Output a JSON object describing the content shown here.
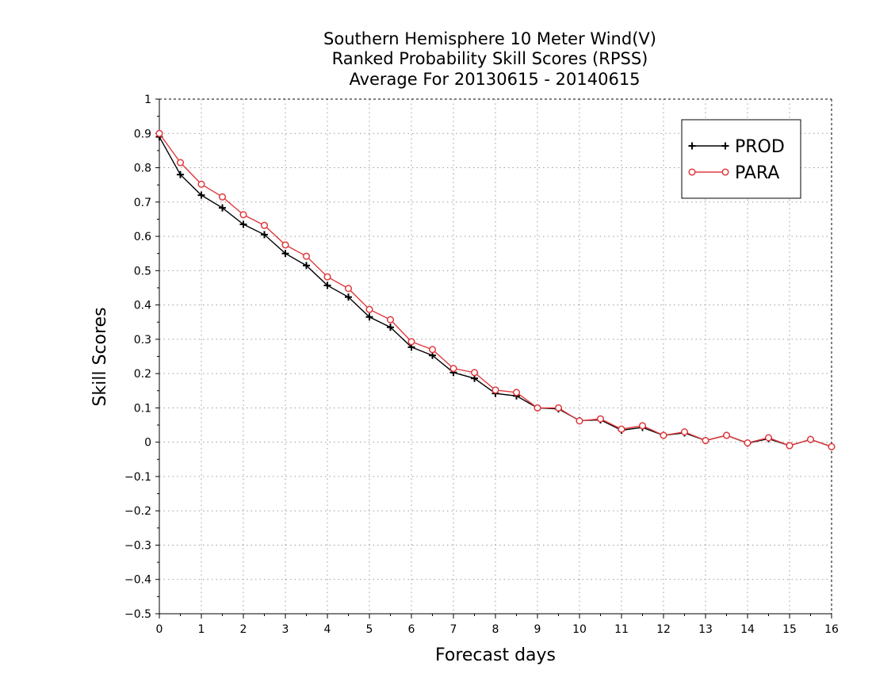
{
  "chart_data": {
    "type": "line",
    "title": [
      "Southern Hemisphere 10 Meter Wind(V)",
      "Ranked Probability Skill Scores (RPSS)",
      "Average For 20130615 - 20140615"
    ],
    "xlabel": "Forecast days",
    "ylabel": "Skill Scores",
    "xlim": [
      0,
      16
    ],
    "ylim": [
      -0.5,
      1
    ],
    "xticks": [
      0,
      1,
      2,
      3,
      4,
      5,
      6,
      7,
      8,
      9,
      10,
      11,
      12,
      13,
      14,
      15,
      16
    ],
    "yticks": [
      -0.5,
      -0.4,
      -0.3,
      -0.2,
      -0.1,
      0,
      0.1,
      0.2,
      0.3,
      0.4,
      0.5,
      0.6,
      0.7,
      0.8,
      0.9,
      1
    ],
    "ytick_labels": [
      "−0.5",
      "−0.4",
      "−0.3",
      "−0.2",
      "−0.1",
      "0",
      "0.1",
      "0.2",
      "0.3",
      "0.4",
      "0.5",
      "0.6",
      "0.7",
      "0.8",
      "0.9",
      "1"
    ],
    "grid": true,
    "legend_position": "top-right",
    "x": [
      0,
      0.5,
      1,
      1.5,
      2,
      2.5,
      3,
      3.5,
      4,
      4.5,
      5,
      5.5,
      6,
      6.5,
      7,
      7.5,
      8,
      8.5,
      9,
      9.5,
      10,
      10.5,
      11,
      11.5,
      12,
      12.5,
      13,
      13.5,
      14,
      14.5,
      15,
      15.5,
      16
    ],
    "series": [
      {
        "name": "PROD",
        "color": "#000000",
        "marker": "plus",
        "values": [
          0.89,
          0.78,
          0.72,
          0.683,
          0.635,
          0.605,
          0.55,
          0.515,
          0.457,
          0.423,
          0.365,
          0.335,
          0.277,
          0.253,
          0.203,
          0.186,
          0.142,
          0.135,
          0.1,
          0.097,
          0.063,
          0.065,
          0.035,
          0.043,
          0.02,
          0.027,
          0.005,
          0.02,
          -0.003,
          0.01,
          -0.01,
          0.008,
          -0.013
        ]
      },
      {
        "name": "PARA",
        "color": "#e0393e",
        "marker": "circle",
        "values": [
          0.9,
          0.815,
          0.752,
          0.715,
          0.663,
          0.632,
          0.575,
          0.542,
          0.482,
          0.448,
          0.387,
          0.357,
          0.293,
          0.27,
          0.215,
          0.203,
          0.152,
          0.145,
          0.1,
          0.1,
          0.062,
          0.068,
          0.038,
          0.048,
          0.02,
          0.03,
          0.005,
          0.02,
          -0.002,
          0.013,
          -0.01,
          0.008,
          -0.013
        ]
      }
    ]
  }
}
